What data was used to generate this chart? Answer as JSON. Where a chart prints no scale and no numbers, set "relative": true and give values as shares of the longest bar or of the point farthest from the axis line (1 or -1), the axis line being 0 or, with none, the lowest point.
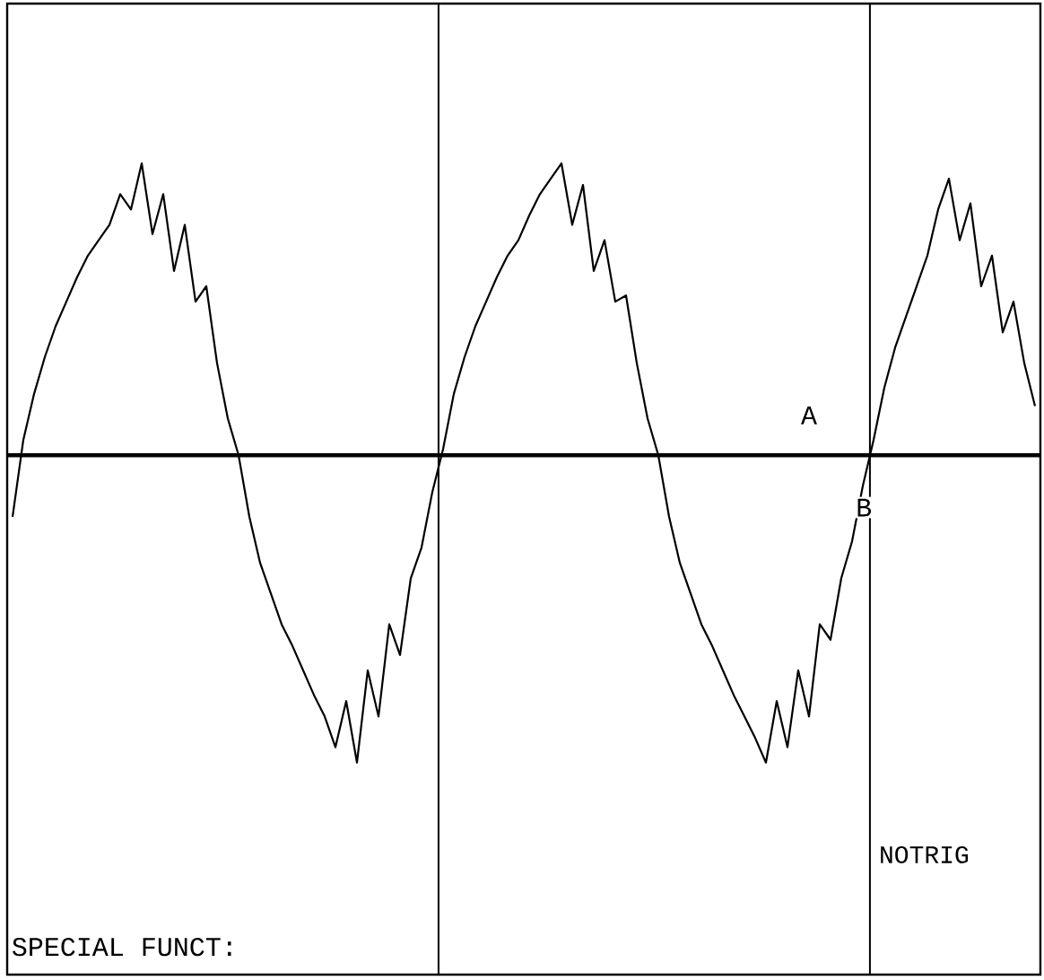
{
  "chart_data": {
    "type": "line",
    "relative": true,
    "categories": [
      null,
      null,
      null,
      null,
      null,
      null,
      null,
      null,
      null,
      null,
      null,
      null,
      null,
      null,
      null,
      null,
      null,
      null,
      null,
      null,
      null,
      null,
      null,
      null,
      null,
      null,
      null,
      null,
      null,
      null,
      null,
      null,
      null,
      null,
      null,
      null,
      null,
      null,
      null,
      null,
      null,
      null,
      null,
      null,
      null,
      null,
      null,
      null,
      null,
      null,
      null,
      null,
      null,
      null,
      null,
      null,
      null,
      null,
      null,
      null,
      null,
      null,
      null,
      null,
      null,
      null,
      null,
      null,
      null,
      null,
      null,
      null,
      null,
      null,
      null,
      null,
      null,
      null,
      null,
      null,
      null,
      null,
      null,
      null,
      null,
      null,
      null,
      null,
      null,
      null,
      null,
      null,
      null,
      null,
      null,
      null
    ],
    "series": [
      {
        "color": "#000000",
        "values": [
          -0.2,
          0.05,
          0.2,
          0.32,
          0.42,
          0.5,
          0.58,
          0.65,
          0.7,
          0.75,
          0.85,
          0.8,
          0.95,
          0.72,
          0.85,
          0.6,
          0.75,
          0.5,
          0.55,
          0.3,
          0.12,
          0.0,
          -0.2,
          -0.35,
          -0.45,
          -0.55,
          -0.62,
          -0.7,
          -0.78,
          -0.85,
          -0.95,
          -0.8,
          -1.0,
          -0.7,
          -0.85,
          -0.55,
          -0.65,
          -0.4,
          -0.3,
          -0.12,
          0.02,
          0.2,
          0.32,
          0.42,
          0.5,
          0.58,
          0.65,
          0.7,
          0.78,
          0.85,
          0.9,
          0.95,
          0.75,
          0.88,
          0.6,
          0.7,
          0.5,
          0.52,
          0.3,
          0.12,
          0.0,
          -0.2,
          -0.35,
          -0.45,
          -0.55,
          -0.62,
          -0.7,
          -0.78,
          -0.85,
          -0.92,
          -1.0,
          -0.8,
          -0.95,
          -0.7,
          -0.85,
          -0.55,
          -0.6,
          -0.4,
          -0.28,
          -0.1,
          0.05,
          0.22,
          0.35,
          0.45,
          0.55,
          0.65,
          0.8,
          0.9,
          0.7,
          0.82,
          0.55,
          0.65,
          0.4,
          0.5,
          0.3,
          0.16
        ]
      }
    ],
    "annotations": [
      "A",
      "B",
      "SPECIAL FUNCT:",
      "NOTRIG"
    ]
  }
}
